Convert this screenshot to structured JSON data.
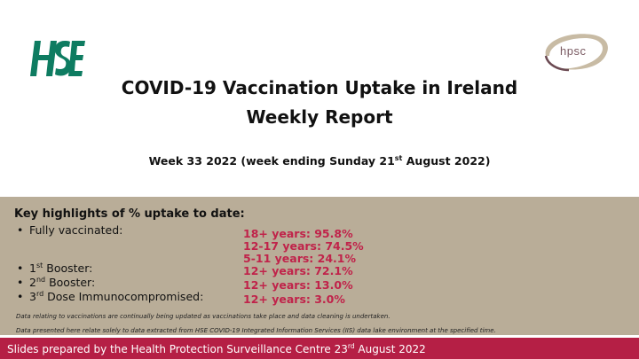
{
  "logos": {
    "left": "hse-logo",
    "right": "hpsc-logo",
    "right_text": "hpsc",
    "hse_color": "#0e7c61",
    "hpsc_swoosh_color": "#c8bba4"
  },
  "title": {
    "line1": "COVID-19 Vaccination Uptake in Ireland",
    "line2": "Weekly Report"
  },
  "subtitle": {
    "pre": "Week 33 2022 (week ending Sunday 21",
    "sup": "st",
    "post": " August 2022)"
  },
  "highlights": {
    "heading": "Key highlights of % uptake to date:",
    "bullet": "•",
    "rows": [
      {
        "pre": "Fully vaccinated:",
        "sup": "",
        "post": "",
        "values": [
          "18+ years: 95.8%",
          "12-17 years: 74.5%",
          "5-11 years: 24.1%"
        ]
      },
      {
        "pre": "1",
        "sup": "st",
        "post": " Booster:",
        "values": [
          "12+ years: 72.1%"
        ]
      },
      {
        "pre": "2",
        "sup": "nd",
        "post": " Booster:",
        "values": [
          "12+ years: 13.0%"
        ]
      },
      {
        "pre": "3",
        "sup": "rd",
        "post": " Dose Immunocompromised:",
        "values": [
          "12+ years: 3.0%"
        ]
      }
    ],
    "notes": [
      "Data relating to vaccinations are continually being updated as vaccinations take place and data cleaning is undertaken.",
      "Data presented here relate solely to data extracted from HSE COVID-19 Integrated Information Services (IIS) data lake environment at the specified time."
    ],
    "accent": "#c0234a",
    "panel_color": "#b9ad98"
  },
  "footer": {
    "pre": "Slides prepared by the Health Protection Surveillance Centre 23",
    "sup": "rd",
    "post": " August 2022",
    "color": "#b51f45"
  }
}
